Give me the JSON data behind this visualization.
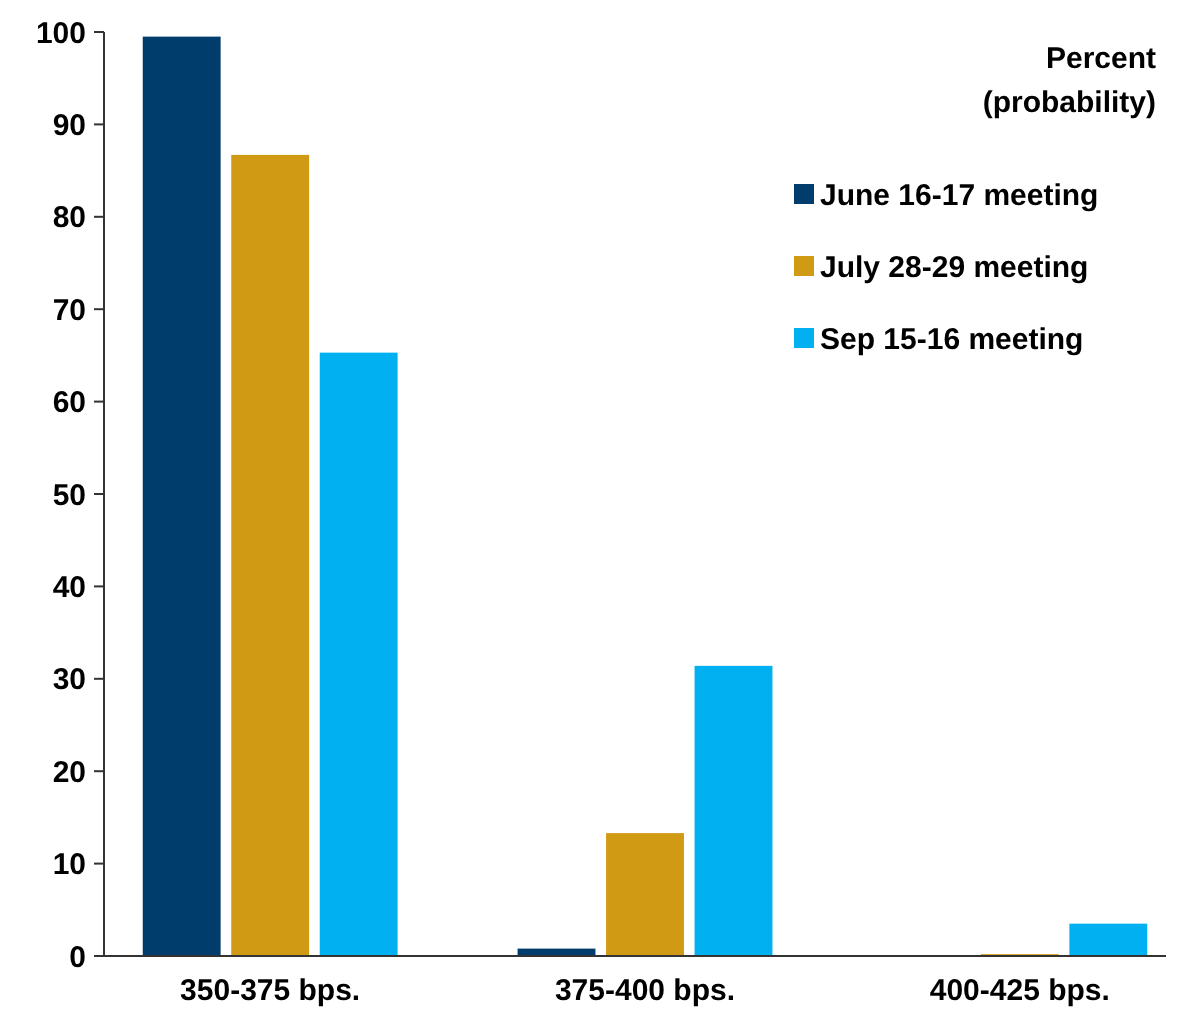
{
  "chart_data": {
    "type": "bar",
    "categories": [
      "350-375 bps.",
      "375-400 bps.",
      "400-425 bps."
    ],
    "series": [
      {
        "name": "June 16-17 meeting",
        "color": "#003c6c",
        "values": [
          99.5,
          0.8,
          0
        ]
      },
      {
        "name": "July 28-29 meeting",
        "color": "#d09a14",
        "values": [
          86.7,
          13.3,
          0.2
        ]
      },
      {
        "name": "Sep 15-16 meeting",
        "color": "#00b0f0",
        "values": [
          65.3,
          31.4,
          3.5
        ]
      }
    ],
    "legend_title": "Percent (probability)",
    "legend": "top right",
    "ylim": [
      0,
      100
    ],
    "yticks": [
      0,
      10,
      20,
      30,
      40,
      50,
      60,
      70,
      80,
      90,
      100
    ],
    "grid": false
  }
}
